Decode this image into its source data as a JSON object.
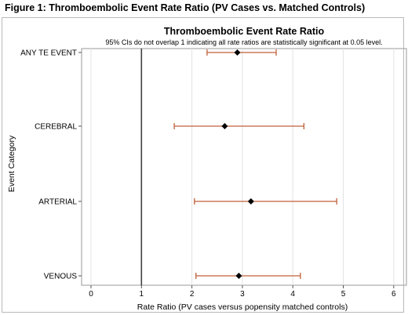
{
  "figure_caption": "Figure 1: Thromboembolic Event Rate Ratio (PV Cases vs. Matched Controls)",
  "chart_data": {
    "type": "scatter",
    "subtype": "forest-plot",
    "title": "Thromboembolic Event Rate Ratio",
    "subtitle": "95% CIs do not overlap 1 indicating all rate ratios are statistically significant at 0.05 level.",
    "xlabel": "Rate Ratio (PV cases versus popensity matched controls)",
    "ylabel": "Event Category",
    "xlim": [
      0,
      6
    ],
    "x_ticks": [
      0,
      1,
      2,
      3,
      4,
      5,
      6
    ],
    "reference_line": 1,
    "grid": true,
    "categories": [
      "ANY TE EVENT",
      "CEREBRAL",
      "ARTERIAL",
      "VENOUS"
    ],
    "estimates": [
      2.9,
      2.65,
      3.17,
      2.93
    ],
    "ci_lower": [
      2.3,
      1.65,
      2.05,
      2.08
    ],
    "ci_upper": [
      3.67,
      4.22,
      4.87,
      4.15
    ],
    "colors": {
      "marker": "#000000",
      "ci_line": "#c0603a",
      "grid": "#e3e3e3",
      "reference": "#404040",
      "frame": "#b9b9b9"
    }
  }
}
